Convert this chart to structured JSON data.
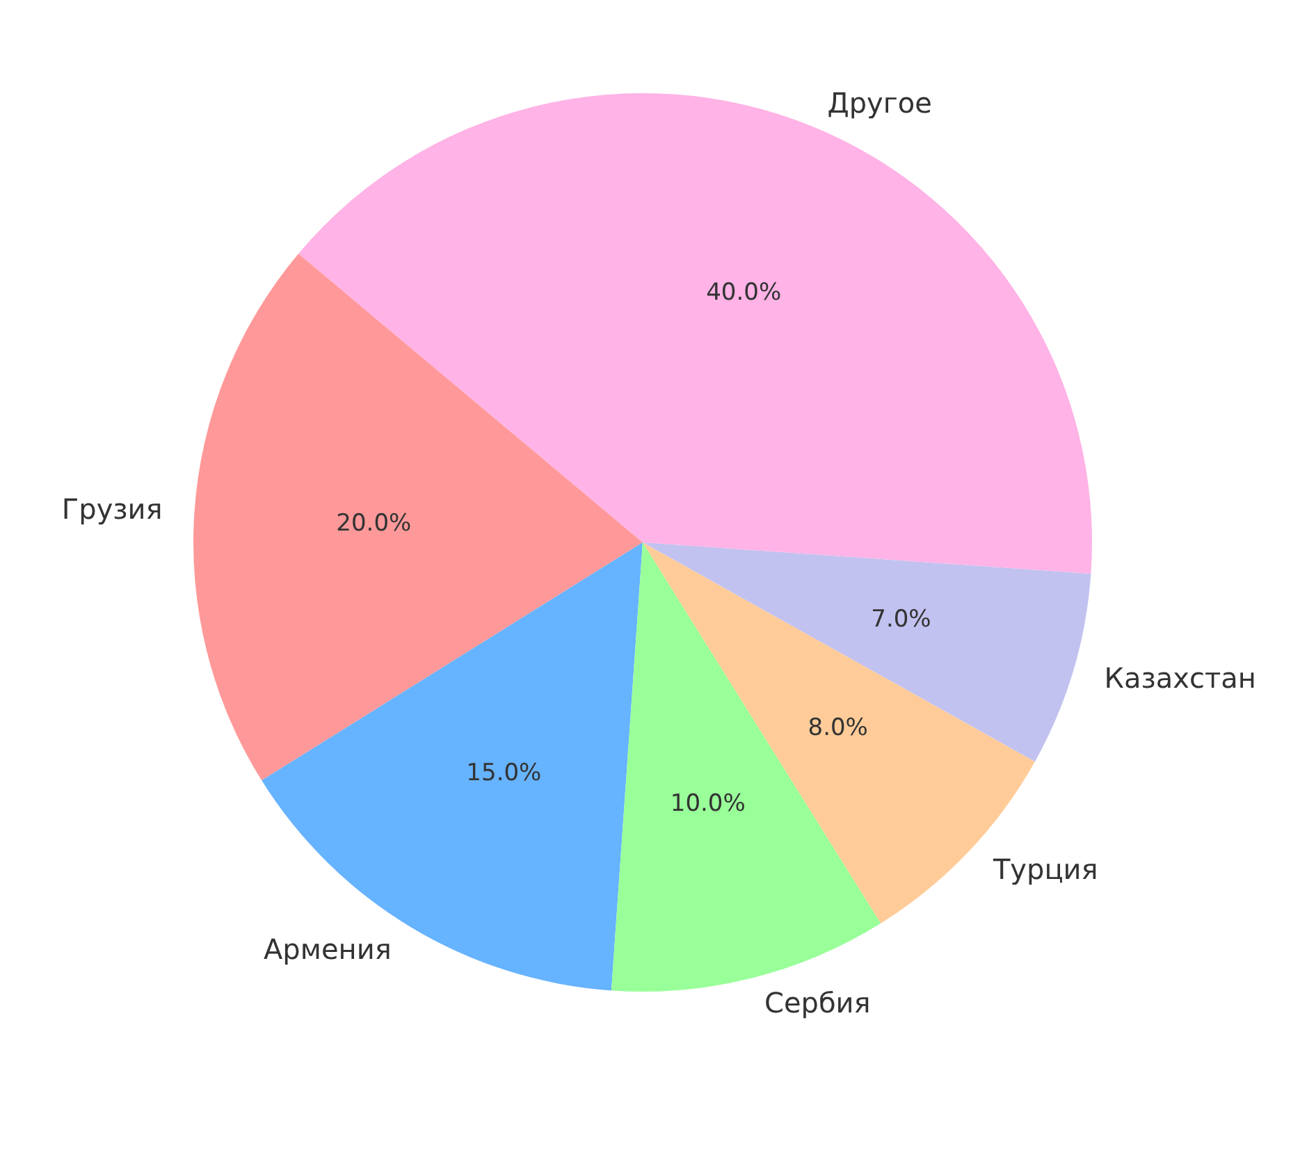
{
  "chart_data": {
    "type": "pie",
    "categories": [
      "Грузия",
      "Армения",
      "Сербия",
      "Турция",
      "Казахстан",
      "Другое"
    ],
    "values": [
      20,
      15,
      10,
      8,
      7,
      40
    ],
    "colors": [
      "#ff9999",
      "#66b3ff",
      "#99ff99",
      "#ffcc99",
      "#c2c2f0",
      "#ffb3e6"
    ],
    "value_labels": [
      "20.0%",
      "15.0%",
      "10.0%",
      "8.0%",
      "7.0%",
      "40.0%"
    ],
    "legend": false
  }
}
